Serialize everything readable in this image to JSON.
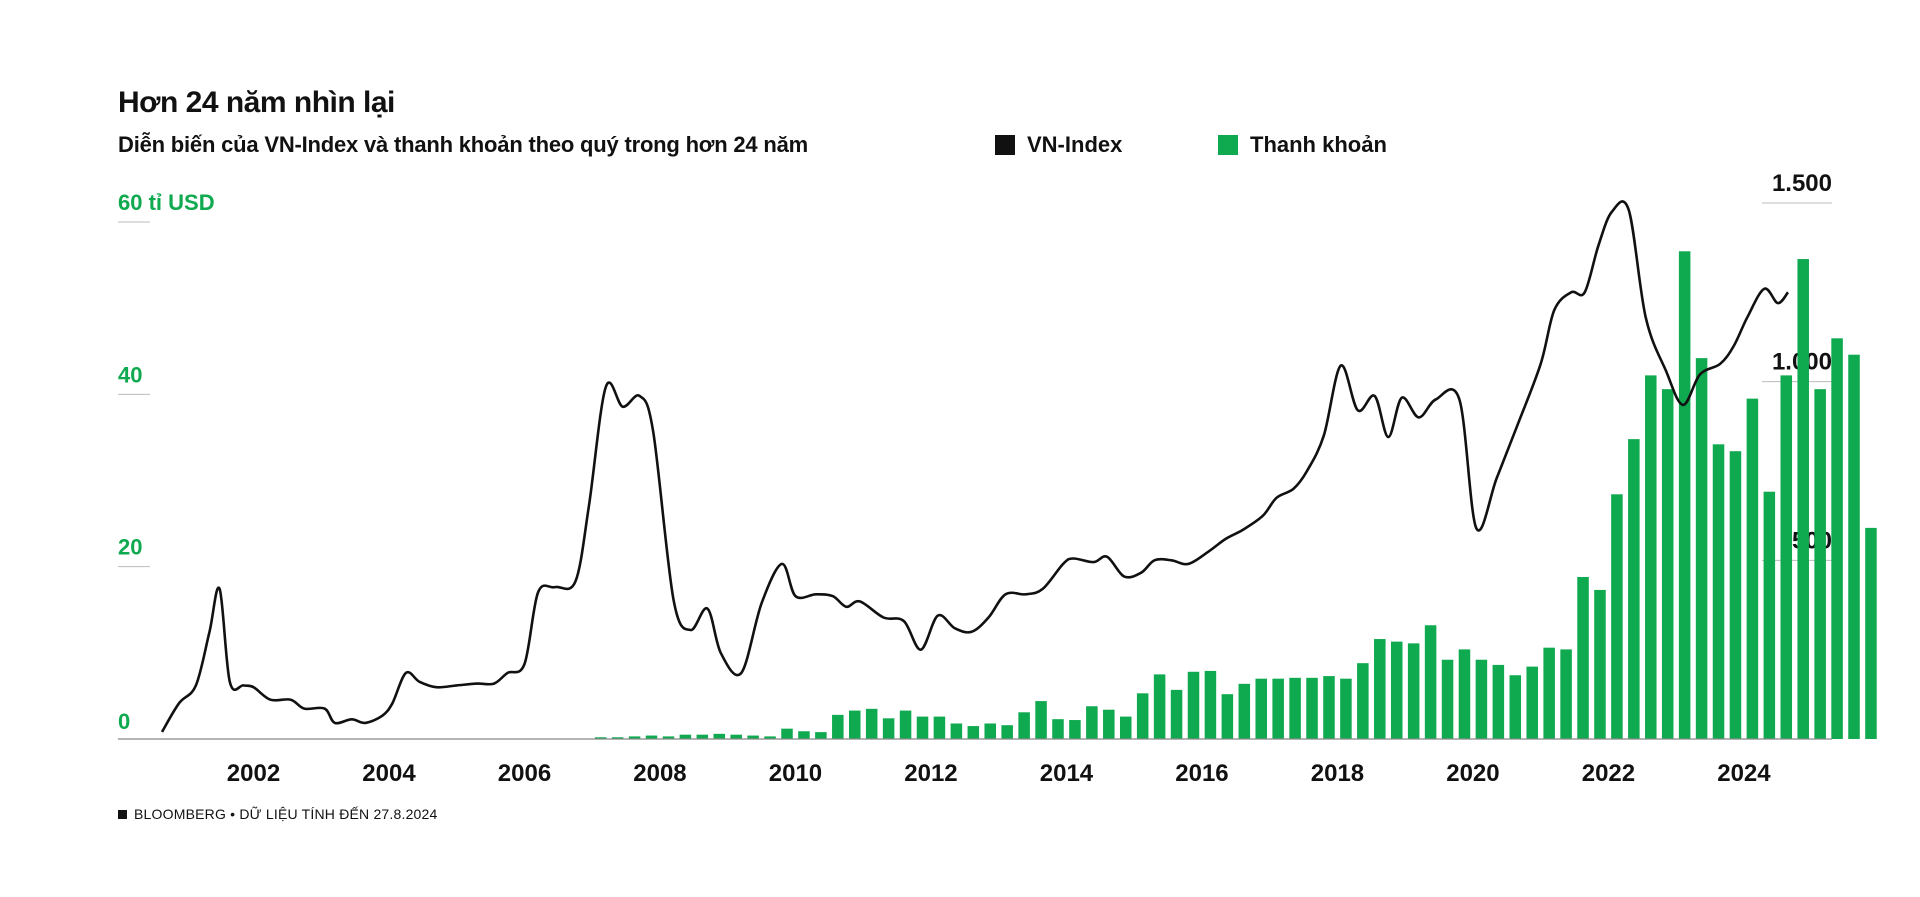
{
  "header": {
    "title": "Hơn 24 năm nhìn lại",
    "subtitle": "Diễn biến của VN-Index và thanh khoản theo quý trong hơn 24 năm"
  },
  "legend": {
    "line_label": "VN-Index",
    "bar_label": "Thanh khoản"
  },
  "axes": {
    "left_unit_label": "60 tỉ USD"
  },
  "footer": {
    "source": "BLOOMBERG • DỮ LIỆU TÍNH ĐẾN 27.8.2024"
  },
  "colors": {
    "bar": "#0fa94f",
    "line": "#111111",
    "left_axis_text": "#0fa94f",
    "right_axis_text": "#111111",
    "grid": "#bbbbbb"
  },
  "chart_data": {
    "type": "bar+line",
    "bar_series": {
      "name": "Thanh khoản",
      "axis": "left",
      "unit": "tỉ USD",
      "x_start": 2000.5,
      "x_step": 0.25,
      "values": [
        0,
        0,
        0,
        0,
        0,
        0,
        0,
        0,
        0,
        0,
        0,
        0,
        0,
        0,
        0,
        0,
        0,
        0,
        0,
        0,
        0,
        0,
        0,
        0,
        0,
        0,
        0.2,
        0.2,
        0.3,
        0.4,
        0.3,
        0.5,
        0.5,
        0.6,
        0.5,
        0.4,
        0.3,
        1.2,
        0.9,
        0.8,
        2.8,
        3.3,
        3.5,
        2.4,
        3.3,
        2.6,
        2.6,
        1.8,
        1.5,
        1.8,
        1.6,
        3.1,
        4.4,
        2.3,
        2.2,
        3.8,
        3.4,
        2.6,
        5.3,
        7.5,
        5.7,
        7.8,
        7.9,
        5.2,
        6.4,
        7.0,
        7.0,
        7.1,
        7.1,
        7.3,
        7.0,
        8.8,
        11.6,
        11.3,
        11.1,
        13.2,
        9.2,
        10.4,
        9.2,
        8.6,
        7.4,
        8.4,
        10.6,
        10.4,
        18.8,
        17.3,
        28.4,
        34.8,
        42.2,
        40.6,
        56.6,
        44.2,
        34.2,
        33.4,
        39.5,
        28.7,
        42.2,
        55.7,
        40.6,
        46.5,
        44.6,
        24.5
      ]
    },
    "line_series": {
      "name": "VN-Index",
      "axis": "right",
      "points": [
        [
          2000.65,
          20
        ],
        [
          2000.9,
          100
        ],
        [
          2001.15,
          150
        ],
        [
          2001.35,
          300
        ],
        [
          2001.5,
          420
        ],
        [
          2001.65,
          160
        ],
        [
          2001.85,
          150
        ],
        [
          2002.0,
          145
        ],
        [
          2002.25,
          110
        ],
        [
          2002.55,
          110
        ],
        [
          2002.75,
          85
        ],
        [
          2003.05,
          85
        ],
        [
          2003.2,
          45
        ],
        [
          2003.45,
          55
        ],
        [
          2003.65,
          45
        ],
        [
          2003.9,
          65
        ],
        [
          2004.05,
          100
        ],
        [
          2004.25,
          185
        ],
        [
          2004.45,
          160
        ],
        [
          2004.7,
          145
        ],
        [
          2005.0,
          150
        ],
        [
          2005.3,
          155
        ],
        [
          2005.55,
          155
        ],
        [
          2005.75,
          185
        ],
        [
          2006.0,
          210
        ],
        [
          2006.2,
          410
        ],
        [
          2006.45,
          425
        ],
        [
          2006.75,
          440
        ],
        [
          2006.95,
          650
        ],
        [
          2007.2,
          985
        ],
        [
          2007.45,
          930
        ],
        [
          2007.7,
          960
        ],
        [
          2007.9,
          860
        ],
        [
          2008.2,
          390
        ],
        [
          2008.45,
          305
        ],
        [
          2008.7,
          365
        ],
        [
          2008.9,
          240
        ],
        [
          2009.2,
          185
        ],
        [
          2009.5,
          380
        ],
        [
          2009.8,
          490
        ],
        [
          2010.0,
          400
        ],
        [
          2010.3,
          405
        ],
        [
          2010.55,
          400
        ],
        [
          2010.75,
          370
        ],
        [
          2010.95,
          385
        ],
        [
          2011.3,
          340
        ],
        [
          2011.6,
          330
        ],
        [
          2011.85,
          250
        ],
        [
          2012.1,
          345
        ],
        [
          2012.35,
          310
        ],
        [
          2012.6,
          300
        ],
        [
          2012.85,
          340
        ],
        [
          2013.1,
          405
        ],
        [
          2013.4,
          405
        ],
        [
          2013.65,
          420
        ],
        [
          2013.95,
          490
        ],
        [
          2014.1,
          505
        ],
        [
          2014.4,
          495
        ],
        [
          2014.6,
          510
        ],
        [
          2014.85,
          455
        ],
        [
          2015.1,
          465
        ],
        [
          2015.3,
          500
        ],
        [
          2015.55,
          500
        ],
        [
          2015.8,
          490
        ],
        [
          2016.1,
          525
        ],
        [
          2016.35,
          560
        ],
        [
          2016.6,
          585
        ],
        [
          2016.9,
          625
        ],
        [
          2017.1,
          675
        ],
        [
          2017.35,
          700
        ],
        [
          2017.55,
          750
        ],
        [
          2017.8,
          850
        ],
        [
          2018.05,
          1045
        ],
        [
          2018.3,
          920
        ],
        [
          2018.55,
          960
        ],
        [
          2018.75,
          845
        ],
        [
          2018.95,
          955
        ],
        [
          2019.2,
          900
        ],
        [
          2019.45,
          950
        ],
        [
          2019.8,
          950
        ],
        [
          2020.05,
          590
        ],
        [
          2020.35,
          730
        ],
        [
          2020.65,
          875
        ],
        [
          2021.0,
          1050
        ],
        [
          2021.2,
          1200
        ],
        [
          2021.45,
          1250
        ],
        [
          2021.65,
          1250
        ],
        [
          2021.85,
          1380
        ],
        [
          2022.05,
          1475
        ],
        [
          2022.3,
          1480
        ],
        [
          2022.55,
          1180
        ],
        [
          2022.85,
          1030
        ],
        [
          2023.1,
          935
        ],
        [
          2023.35,
          1020
        ],
        [
          2023.65,
          1050
        ],
        [
          2023.85,
          1100
        ],
        [
          2024.05,
          1180
        ],
        [
          2024.3,
          1260
        ],
        [
          2024.5,
          1220
        ],
        [
          2024.65,
          1250
        ]
      ]
    },
    "x_range": [
      2000.0,
      2025.3
    ],
    "x_ticks": [
      "2002",
      "2004",
      "2006",
      "2008",
      "2010",
      "2012",
      "2014",
      "2016",
      "2018",
      "2020",
      "2022",
      "2024"
    ],
    "left_ylim": [
      0,
      60
    ],
    "left_ticks": [
      "0",
      "20",
      "40",
      "60 tỉ USD"
    ],
    "right_ylim": [
      0,
      1500
    ],
    "right_ticks": [
      "500",
      "1.000",
      "1.500"
    ],
    "grid": "right-axis short gridlines"
  }
}
